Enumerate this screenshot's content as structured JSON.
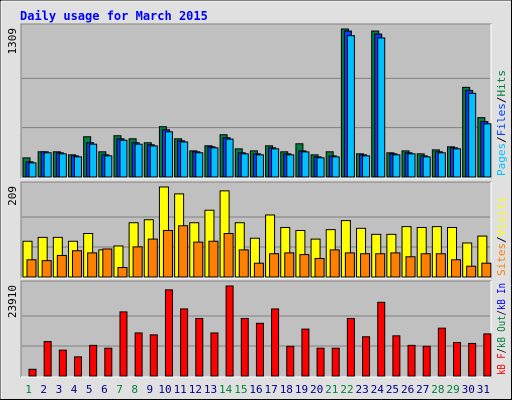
{
  "title": "Daily usage for March 2015",
  "chart_data": [
    {
      "type": "bar",
      "ylim": [
        0,
        1309
      ],
      "yticks": [
        1309
      ],
      "categories": [
        "1",
        "2",
        "3",
        "4",
        "5",
        "6",
        "7",
        "8",
        "9",
        "10",
        "11",
        "12",
        "13",
        "14",
        "15",
        "16",
        "17",
        "18",
        "19",
        "20",
        "21",
        "22",
        "23",
        "24",
        "25",
        "26",
        "27",
        "28",
        "29",
        "30",
        "31"
      ],
      "series": [
        {
          "name": "Hits",
          "color": "#008040",
          "values": [
            169,
            223,
            223,
            196,
            356,
            223,
            365,
            338,
            303,
            445,
            338,
            231,
            276,
            374,
            249,
            231,
            276,
            223,
            294,
            196,
            223,
            1309,
            205,
            1291,
            214,
            231,
            205,
            240,
            267,
            793,
            525
          ]
        },
        {
          "name": "Files",
          "color": "#0040ff",
          "values": [
            134,
            223,
            214,
            187,
            303,
            196,
            338,
            303,
            285,
            418,
            320,
            223,
            267,
            347,
            214,
            205,
            258,
            205,
            231,
            178,
            187,
            1291,
            196,
            1264,
            205,
            214,
            187,
            223,
            258,
            766,
            490
          ]
        },
        {
          "name": "Pages",
          "color": "#00c0ff",
          "values": [
            125,
            214,
            205,
            178,
            290,
            187,
            325,
            290,
            275,
            400,
            310,
            214,
            258,
            335,
            205,
            196,
            249,
            196,
            222,
            170,
            178,
            1250,
            187,
            1230,
            196,
            205,
            178,
            214,
            249,
            740,
            470
          ]
        }
      ]
    },
    {
      "type": "bar",
      "ylim": [
        0,
        209
      ],
      "yticks": [
        209
      ],
      "categories": [
        "1",
        "2",
        "3",
        "4",
        "5",
        "6",
        "7",
        "8",
        "9",
        "10",
        "11",
        "12",
        "13",
        "14",
        "15",
        "16",
        "17",
        "18",
        "19",
        "20",
        "21",
        "22",
        "23",
        "24",
        "25",
        "26",
        "27",
        "28",
        "29",
        "30",
        "31"
      ],
      "series": [
        {
          "name": "Visits",
          "color": "#ffff00",
          "values": [
            83,
            92,
            92,
            83,
            101,
            63,
            72,
            126,
            133,
            209,
            193,
            126,
            155,
            200,
            126,
            90,
            144,
            115,
            108,
            88,
            110,
            131,
            113,
            99,
            99,
            117,
            115,
            117,
            115,
            79,
            95
          ]
        },
        {
          "name": "Sites",
          "color": "#ff8000",
          "values": [
            40,
            38,
            50,
            61,
            56,
            65,
            22,
            70,
            88,
            108,
            119,
            81,
            83,
            101,
            63,
            32,
            54,
            56,
            52,
            43,
            63,
            56,
            54,
            54,
            56,
            47,
            54,
            54,
            40,
            25,
            32
          ]
        }
      ]
    },
    {
      "type": "bar",
      "ylim": [
        0,
        23910
      ],
      "yticks": [
        23910
      ],
      "categories": [
        "1",
        "2",
        "3",
        "4",
        "5",
        "6",
        "7",
        "8",
        "9",
        "10",
        "11",
        "12",
        "13",
        "14",
        "15",
        "16",
        "17",
        "18",
        "19",
        "20",
        "21",
        "22",
        "23",
        "24",
        "25",
        "26",
        "27",
        "28",
        "29",
        "30",
        "31"
      ],
      "label_colors": [
        "#008040",
        "#00008b",
        "#00008b",
        "#00008b",
        "#00008b",
        "#00008b",
        "#008040",
        "#008040",
        "#00008b",
        "#00008b",
        "#00008b",
        "#00008b",
        "#00008b",
        "#008040",
        "#008040",
        "#00008b",
        "#00008b",
        "#00008b",
        "#00008b",
        "#00008b",
        "#008040",
        "#008040",
        "#00008b",
        "#00008b",
        "#00008b",
        "#00008b",
        "#00008b",
        "#008040",
        "#008040",
        "#00008b",
        "#00008b"
      ],
      "series": [
        {
          "name": "kB In",
          "color": "#0000ff",
          "values": [
            0,
            0,
            0,
            0,
            0,
            0,
            0,
            0,
            0,
            0,
            0,
            0,
            0,
            0,
            0,
            0,
            0,
            0,
            0,
            0,
            0,
            0,
            0,
            0,
            0,
            0,
            0,
            0,
            0,
            0,
            0
          ]
        },
        {
          "name": "kB Out",
          "color": "#008040",
          "values": [
            0,
            0,
            0,
            0,
            0,
            0,
            0,
            0,
            0,
            0,
            0,
            0,
            0,
            0,
            0,
            0,
            0,
            0,
            0,
            0,
            0,
            0,
            0,
            0,
            0,
            0,
            0,
            0,
            0,
            0,
            0
          ]
        },
        {
          "name": "kB F",
          "color": "#ff0000",
          "values": [
            1780,
            9156,
            6867,
            5087,
            8138,
            7375,
            17033,
            11441,
            10933,
            22893,
            17813,
            15270,
            11441,
            23910,
            15270,
            13999,
            17813,
            7884,
            12458,
            7375,
            7375,
            15270,
            10425,
            19575,
            10679,
            8138,
            7884,
            12712,
            8901,
            8647,
            11187
          ]
        }
      ]
    }
  ]
}
